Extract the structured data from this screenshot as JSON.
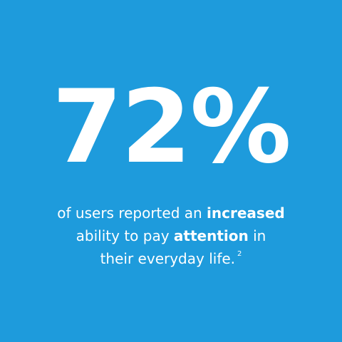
{
  "stat": {
    "value": "72%"
  },
  "caption": {
    "line1_a": "of users reported an ",
    "line1_b": "increased",
    "line2_a": "ability to pay ",
    "line2_b": "attention",
    "line2_c": " in",
    "line3": "their everyday life.",
    "footnote": "2"
  },
  "colors": {
    "background": "#1e9bdc",
    "text": "#ffffff"
  }
}
